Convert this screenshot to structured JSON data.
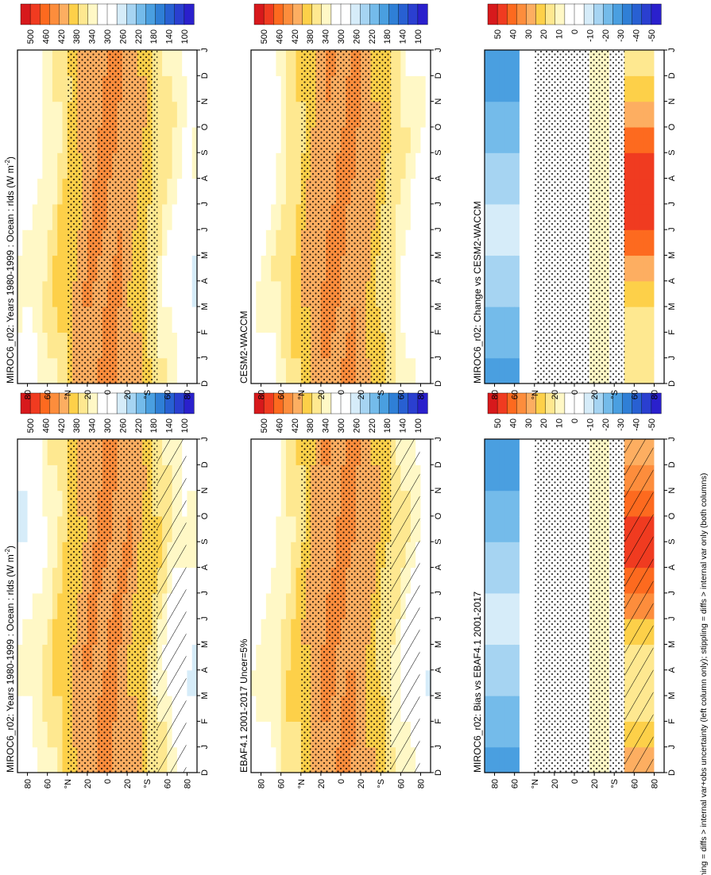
{
  "figure_note": "hatching = diffs > internal var+obs uncertainty (left column only); stippling = diffs > internal var only (both columns)",
  "chart_data": [
    {
      "type": "heatmap",
      "id": "p1",
      "title": "MIROC6_r02: Years 1980-1999 : Ocean : rlds (W m",
      "title_sup": "-2",
      "title_end": ")",
      "kind": "abs",
      "hatch": true,
      "months": [
        "D",
        "J",
        "F",
        "M",
        "A",
        "M",
        "J",
        "J",
        "A",
        "S",
        "O",
        "N",
        "D",
        "J"
      ],
      "lat_labels": [
        "80",
        "60",
        "°N",
        "20",
        "0",
        "20",
        "°S",
        "60",
        "80"
      ]
    },
    {
      "type": "heatmap",
      "id": "p2",
      "title": "MIROC6_r02: Years 1980-1999 : Ocean : rlds (W m",
      "title_sup": "-2",
      "title_end": ")",
      "kind": "abs",
      "hatch": false,
      "months": [
        "D",
        "J",
        "F",
        "M",
        "A",
        "M",
        "J",
        "J",
        "A",
        "S",
        "O",
        "N",
        "D",
        "J"
      ],
      "lat_labels": [
        "80",
        "60",
        "°N",
        "20",
        "0",
        "20",
        "°S",
        "60",
        "80"
      ]
    },
    {
      "type": "heatmap",
      "id": "p3",
      "title": "EBAF4.1 2001-2017 Uncer=5%",
      "kind": "abs",
      "hatch": true,
      "months": [
        "D",
        "J",
        "F",
        "M",
        "A",
        "M",
        "J",
        "J",
        "A",
        "S",
        "O",
        "N",
        "D",
        "J"
      ],
      "lat_labels": [
        "80",
        "60",
        "°N",
        "20",
        "0",
        "20",
        "°S",
        "60",
        "80"
      ]
    },
    {
      "type": "heatmap",
      "id": "p4",
      "title": "CESM2-WACCM",
      "kind": "abs",
      "hatch": false,
      "months": [
        "D",
        "J",
        "F",
        "M",
        "A",
        "M",
        "J",
        "J",
        "A",
        "S",
        "O",
        "N",
        "D",
        "J"
      ],
      "lat_labels": [
        "80",
        "60",
        "°N",
        "20",
        "0",
        "20",
        "°S",
        "60",
        "80"
      ]
    },
    {
      "type": "heatmap",
      "id": "p5",
      "title": "MIROC6_r02: Bias vs EBAF4.1 2001-2017",
      "kind": "diff",
      "hatch": true,
      "months": [
        "D",
        "J",
        "F",
        "M",
        "A",
        "M",
        "J",
        "J",
        "A",
        "S",
        "O",
        "N",
        "D",
        "J"
      ],
      "lat_labels": [
        "80",
        "60",
        "°N",
        "20",
        "0",
        "20",
        "°S",
        "60",
        "80"
      ]
    },
    {
      "type": "heatmap",
      "id": "p6",
      "title": "MIROC6_r02: Change vs CESM2-WACCM",
      "kind": "diff",
      "hatch": false,
      "months": [
        "D",
        "J",
        "F",
        "M",
        "A",
        "M",
        "J",
        "J",
        "A",
        "S",
        "O",
        "N",
        "D",
        "J"
      ],
      "lat_labels": [
        "80",
        "60",
        "°N",
        "20",
        "0",
        "20",
        "°S",
        "60",
        "80"
      ]
    }
  ],
  "colorbars": {
    "abs": {
      "labels": [
        "500",
        "460",
        "420",
        "380",
        "340",
        "300",
        "260",
        "220",
        "180",
        "140",
        "100"
      ],
      "colors": [
        "#d7191c",
        "#f03b20",
        "#fd6a1f",
        "#fd8d3c",
        "#fdae61",
        "#fdd049",
        "#fee890",
        "#fff8c6",
        "#ffffff",
        "#ffffff",
        "#d6ecf9",
        "#a6d4f2",
        "#74bbea",
        "#4a9fe0",
        "#2f7fd6",
        "#2860d2",
        "#2a3fd0",
        "#2a20cc"
      ]
    },
    "diff": {
      "labels": [
        "50",
        "40",
        "30",
        "20",
        "10",
        "0",
        "-10",
        "-20",
        "-30",
        "-40",
        "-50"
      ],
      "colors": [
        "#d7191c",
        "#f03b20",
        "#fd6a1f",
        "#fd8d3c",
        "#fdae61",
        "#fdd049",
        "#fee890",
        "#fff8c6",
        "#ffffff",
        "#ffffff",
        "#d6ecf9",
        "#a6d4f2",
        "#74bbea",
        "#4a9fe0",
        "#2f7fd6",
        "#2860d2",
        "#2a3fd0",
        "#2a20cc"
      ]
    }
  }
}
